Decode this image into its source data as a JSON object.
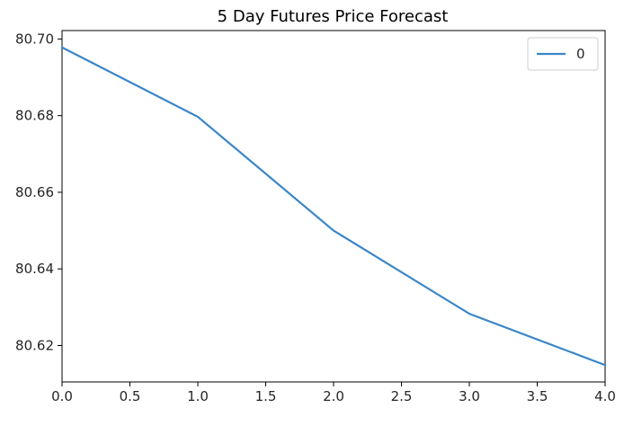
{
  "chart_data": {
    "type": "line",
    "title": "5 Day Futures Price Forecast",
    "xlabel": "",
    "ylabel": "",
    "xlim": [
      0.0,
      4.0
    ],
    "ylim": [
      80.6105,
      80.7022
    ],
    "x_ticks": [
      0.0,
      0.5,
      1.0,
      1.5,
      2.0,
      2.5,
      3.0,
      3.5,
      4.0
    ],
    "x_tick_labels": [
      "0.0",
      "0.5",
      "1.0",
      "1.5",
      "2.0",
      "2.5",
      "3.0",
      "3.5",
      "4.0"
    ],
    "y_ticks": [
      80.62,
      80.64,
      80.66,
      80.68,
      80.7
    ],
    "y_tick_labels": [
      "80.62",
      "80.64",
      "80.66",
      "80.68",
      "80.70"
    ],
    "grid": false,
    "legend_position": "upper right",
    "series": [
      {
        "name": "0",
        "color": "#3a86c8",
        "x": [
          0,
          1,
          2,
          3,
          4
        ],
        "y": [
          80.6978,
          80.6797,
          80.65,
          80.6283,
          80.6149
        ]
      }
    ]
  }
}
